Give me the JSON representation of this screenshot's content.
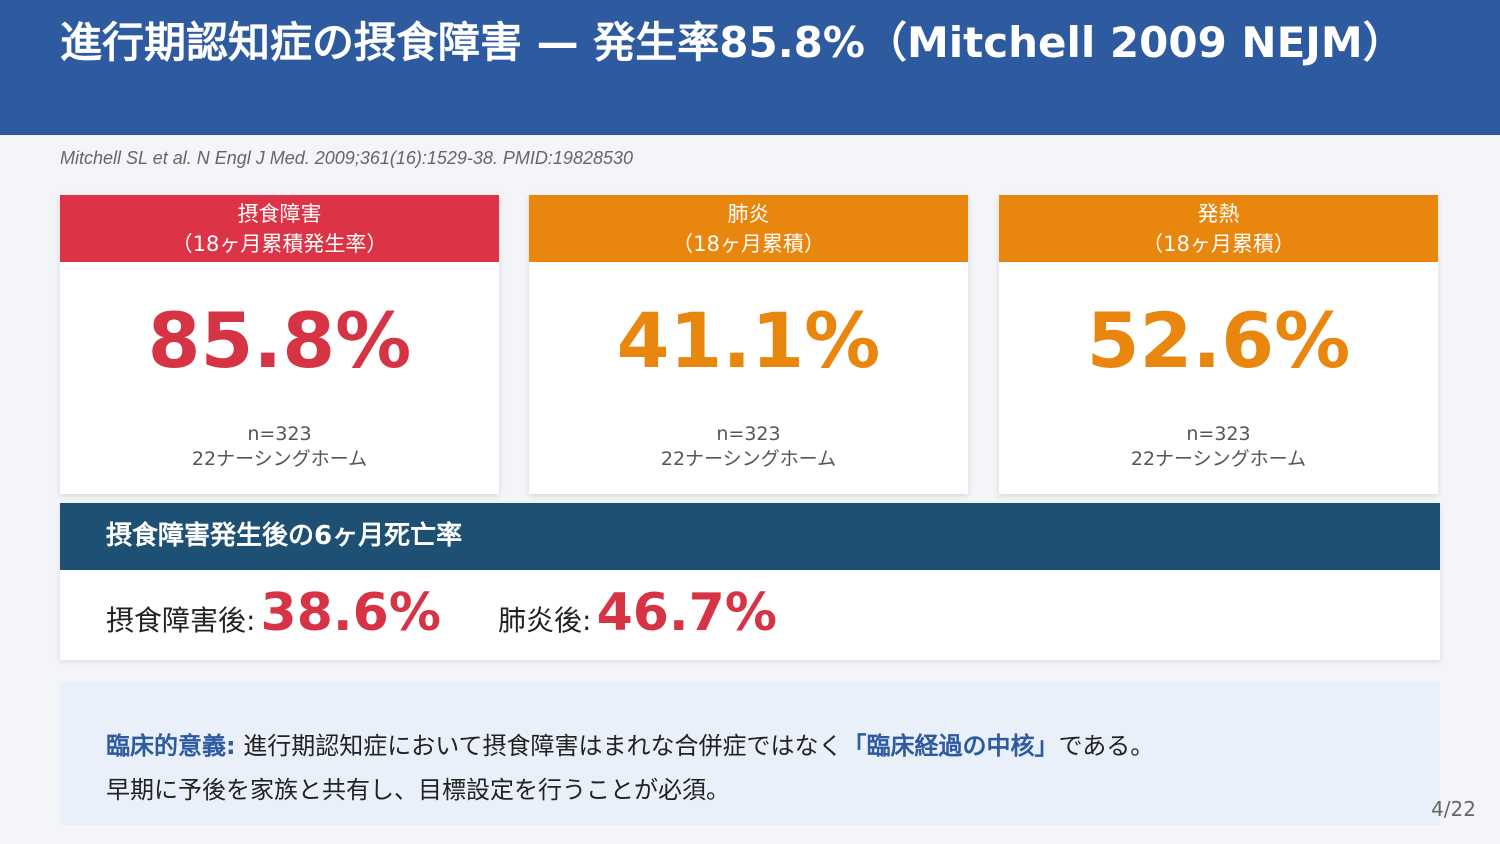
{
  "header": {
    "title": "進行期認知症の摂食障害 — 発生率85.8%（Mitchell 2009 NEJM）"
  },
  "citation": "Mitchell SL et al. N Engl J Med. 2009;361(16):1529-38.  PMID:19828530",
  "cards": [
    {
      "title": "摂食障害",
      "subtitle": "（18ヶ月累積発生率）",
      "value": "85.8%",
      "n": "n=323",
      "sites": "22ナーシングホーム",
      "color": "#d63344"
    },
    {
      "title": "肺炎",
      "subtitle": "（18ヶ月累積）",
      "value": "41.1%",
      "n": "n=323",
      "sites": "22ナーシングホーム",
      "color": "#e8860e"
    },
    {
      "title": "発熱",
      "subtitle": "（18ヶ月累積）",
      "value": "52.6%",
      "n": "n=323",
      "sites": "22ナーシングホーム",
      "color": "#e8860e"
    }
  ],
  "mortality": {
    "title": "摂食障害発生後の6ヶ月死亡率",
    "items": [
      {
        "label": "摂食障害後:",
        "value": "38.6%"
      },
      {
        "label": "肺炎後:",
        "value": "46.7%"
      }
    ]
  },
  "significance": {
    "label": "臨床的意義:",
    "text_before": " 進行期認知症において摂食障害はまれな合併症ではなく",
    "highlight": "「臨床経過の中核」",
    "text_after": "である。",
    "line2": "早期に予後を家族と共有し、目標設定を行うことが必須。"
  },
  "page_number": "4/22"
}
